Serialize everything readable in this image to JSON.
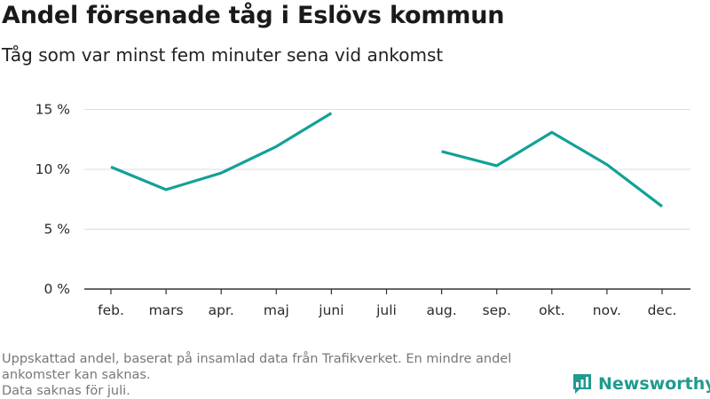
{
  "title": "Andel försenade tåg i Eslövs kommun",
  "subtitle": "Tåg som var minst fem minuter sena vid ankomst",
  "footer": {
    "line1": "Uppskattad andel, baserat på insamlad data från Trafikverket. En mindre andel ankomster kan saknas.",
    "line2": "Data saknas för juli."
  },
  "brand": {
    "name": "Newsworthy",
    "color": "#1f9b8f"
  },
  "chart_data": {
    "type": "line",
    "categories": [
      "feb.",
      "mars",
      "apr.",
      "maj",
      "juni",
      "juli",
      "aug.",
      "sep.",
      "okt.",
      "nov.",
      "dec."
    ],
    "series": [
      {
        "values": [
          10.2,
          8.3,
          9.7,
          11.9,
          14.7,
          null,
          11.5,
          10.3,
          13.1,
          10.4,
          6.9
        ],
        "color": "#13a196"
      }
    ],
    "yticks": [
      "0 %",
      "5 %",
      "10 %",
      "15 %"
    ],
    "ytick_values": [
      0,
      5,
      10,
      15
    ],
    "ylim": [
      0,
      16
    ],
    "grid": true
  }
}
